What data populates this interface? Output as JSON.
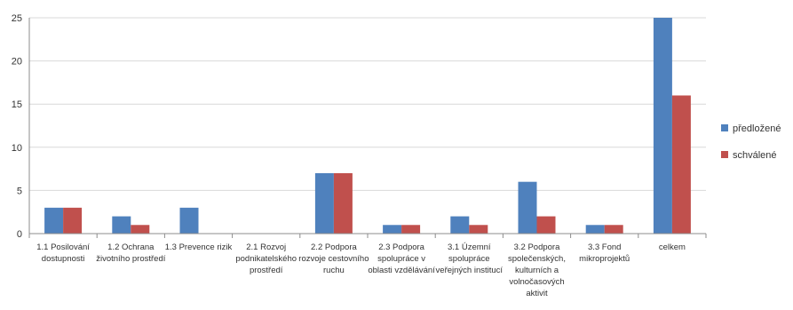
{
  "chart_data": {
    "type": "bar",
    "categories": [
      [
        "1.1 Posilování",
        "dostupnosti"
      ],
      [
        "1.2 Ochrana",
        "životního prostředí"
      ],
      [
        "1.3 Prevence rizik"
      ],
      [
        "2.1 Rozvoj",
        "podnikatelského",
        "prostředí"
      ],
      [
        "2.2 Podpora",
        "rozvoje cestovního",
        "ruchu"
      ],
      [
        "2.3 Podpora",
        "spolupráce v",
        "oblasti vzdělávání"
      ],
      [
        "3.1 Územní",
        "spolupráce",
        "veřejných institucí"
      ],
      [
        "3.2 Podpora",
        "společenských,",
        "kulturních a",
        "volnočasových",
        "aktivit"
      ],
      [
        "3.3 Fond",
        "mikroprojektů"
      ],
      [
        "celkem"
      ]
    ],
    "series": [
      {
        "name": "předložené",
        "color": "#4f81bd",
        "values": [
          3,
          2,
          3,
          0,
          7,
          1,
          2,
          6,
          1,
          25
        ]
      },
      {
        "name": "schválené",
        "color": "#c0504d",
        "values": [
          3,
          1,
          0,
          0,
          7,
          1,
          1,
          2,
          1,
          16
        ]
      }
    ],
    "yticks": [
      0,
      5,
      10,
      15,
      20,
      25
    ],
    "ylim": [
      0,
      25
    ],
    "grid": true,
    "legend": "right"
  }
}
